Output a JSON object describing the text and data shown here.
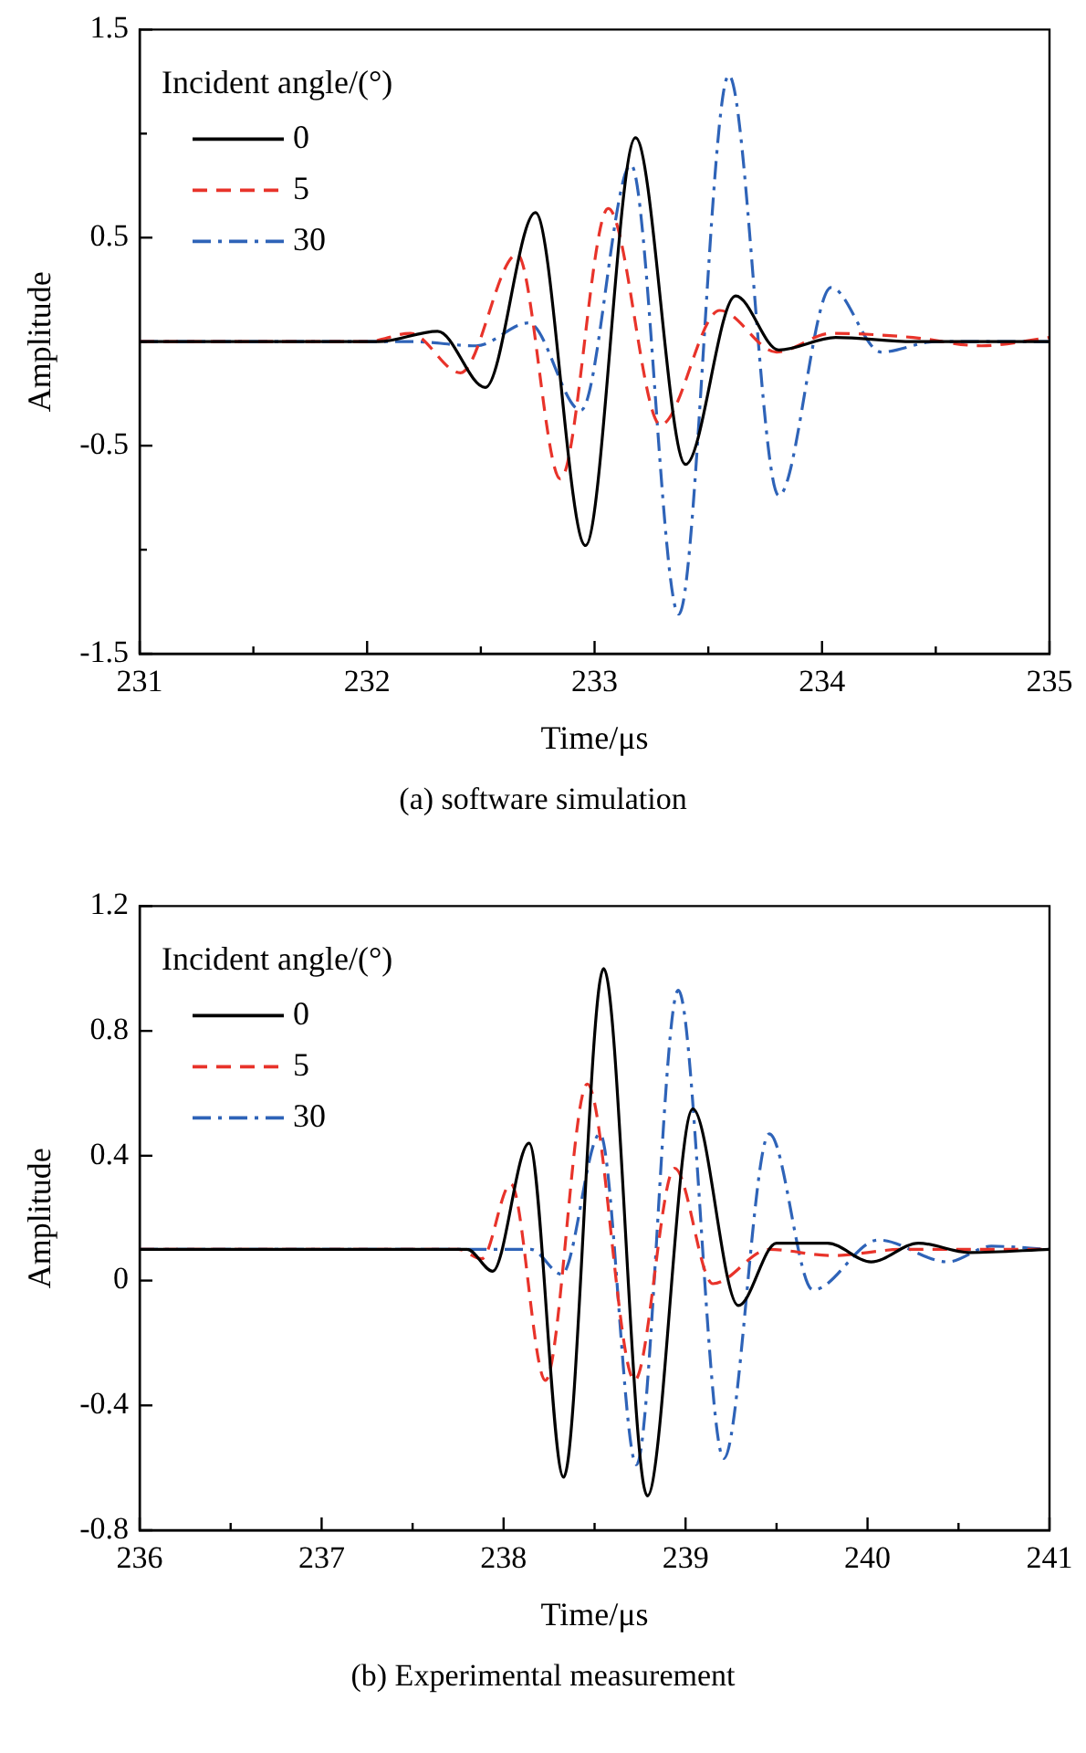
{
  "chart_data": [
    {
      "type": "line",
      "xlabel": "Time/μs",
      "ylabel": "Amplitude",
      "legend_title": "Incident angle/(°)",
      "legend": "top left",
      "grid": false,
      "marker": "none",
      "annotations": [
        "(a) software simulation"
      ],
      "xlim": [
        231,
        235
      ],
      "xticks": [
        231,
        {
          "value": 231.5,
          "label": null
        },
        232,
        {
          "value": 232.5,
          "label": null
        },
        233,
        {
          "value": 233.5,
          "label": null
        },
        234,
        {
          "value": 234.5,
          "label": null
        },
        235
      ],
      "ylim": [
        -1.5,
        1.5
      ],
      "yticks": [
        -1.5,
        {
          "value": -1,
          "label": null
        },
        -0.5,
        {
          "value": 0,
          "label": null
        },
        0.5,
        {
          "value": 1,
          "label": null
        },
        1.5
      ],
      "series": [
        {
          "name": "0",
          "color": "#000000",
          "line_style": "solid",
          "x": [
            231,
            232.05,
            232.31,
            232.52,
            232.74,
            232.96,
            233.18,
            233.4,
            233.62,
            233.81,
            234.06,
            234.4,
            235
          ],
          "values": [
            0,
            0,
            0.05,
            -0.22,
            0.62,
            -0.98,
            0.98,
            -0.59,
            0.22,
            -0.04,
            0.02,
            0,
            0
          ]
        },
        {
          "name": "5",
          "color": "#e8332a",
          "line_style": "dashed",
          "x": [
            231,
            232,
            232.19,
            232.41,
            232.66,
            232.85,
            233.06,
            233.29,
            233.55,
            233.8,
            234.04,
            234.4,
            234.7,
            235
          ],
          "values": [
            0,
            0,
            0.04,
            -0.15,
            0.42,
            -0.66,
            0.64,
            -0.4,
            0.15,
            -0.05,
            0.04,
            0.02,
            -0.02,
            0.02
          ]
        },
        {
          "name": "30",
          "color": "#2e63b8",
          "line_style": "dashdot",
          "x": [
            231,
            232.2,
            232.48,
            232.71,
            232.94,
            233.16,
            233.37,
            233.59,
            233.81,
            234.04,
            234.26,
            234.5,
            235
          ],
          "values": [
            0,
            0,
            -0.02,
            0.09,
            -0.33,
            0.85,
            -1.31,
            1.28,
            -0.74,
            0.26,
            -0.05,
            0,
            0
          ]
        }
      ]
    },
    {
      "type": "line",
      "xlabel": "Time/μs",
      "ylabel": "Amplitude",
      "legend_title": "Incident angle/(°)",
      "legend": "top left",
      "grid": false,
      "marker": "none",
      "annotations": [
        "(b) Experimental measurement"
      ],
      "xlim": [
        236,
        241
      ],
      "xticks": [
        236,
        {
          "value": 236.5,
          "label": null
        },
        237,
        {
          "value": 237.5,
          "label": null
        },
        238,
        {
          "value": 238.5,
          "label": null
        },
        239,
        {
          "value": 239.5,
          "label": null
        },
        240,
        {
          "value": 240.5,
          "label": null
        },
        241
      ],
      "ylim": [
        -0.8,
        1.2
      ],
      "yticks": [
        -0.8,
        -0.4,
        0,
        0.4,
        0.8,
        1.2
      ],
      "series": [
        {
          "name": "0",
          "color": "#000000",
          "line_style": "solid",
          "x": [
            236,
            237.8,
            237.94,
            238.14,
            238.33,
            238.55,
            238.79,
            239.04,
            239.29,
            239.5,
            239.78,
            240.02,
            240.28,
            240.56,
            241
          ],
          "values": [
            0.1,
            0.1,
            0.03,
            0.44,
            -0.63,
            1,
            -0.69,
            0.55,
            -0.08,
            0.12,
            0.12,
            0.06,
            0.12,
            0.09,
            0.1
          ]
        },
        {
          "name": "5",
          "color": "#e8332a",
          "line_style": "dashed",
          "x": [
            236,
            237.75,
            237.88,
            238.04,
            238.23,
            238.46,
            238.72,
            238.94,
            239.15,
            239.46,
            239.8,
            240.2,
            241
          ],
          "values": [
            0.1,
            0.1,
            0.07,
            0.31,
            -0.32,
            0.63,
            -0.32,
            0.36,
            -0.01,
            0.1,
            0.08,
            0.1,
            0.1
          ]
        },
        {
          "name": "30",
          "color": "#2e63b8",
          "line_style": "dashdot",
          "x": [
            236,
            238.15,
            238.32,
            238.53,
            238.73,
            238.96,
            239.21,
            239.46,
            239.7,
            240.06,
            240.44,
            240.68,
            241
          ],
          "values": [
            0.1,
            0.1,
            0.02,
            0.47,
            -0.59,
            0.93,
            -0.57,
            0.47,
            -0.03,
            0.13,
            0.06,
            0.11,
            0.1
          ]
        }
      ]
    }
  ]
}
